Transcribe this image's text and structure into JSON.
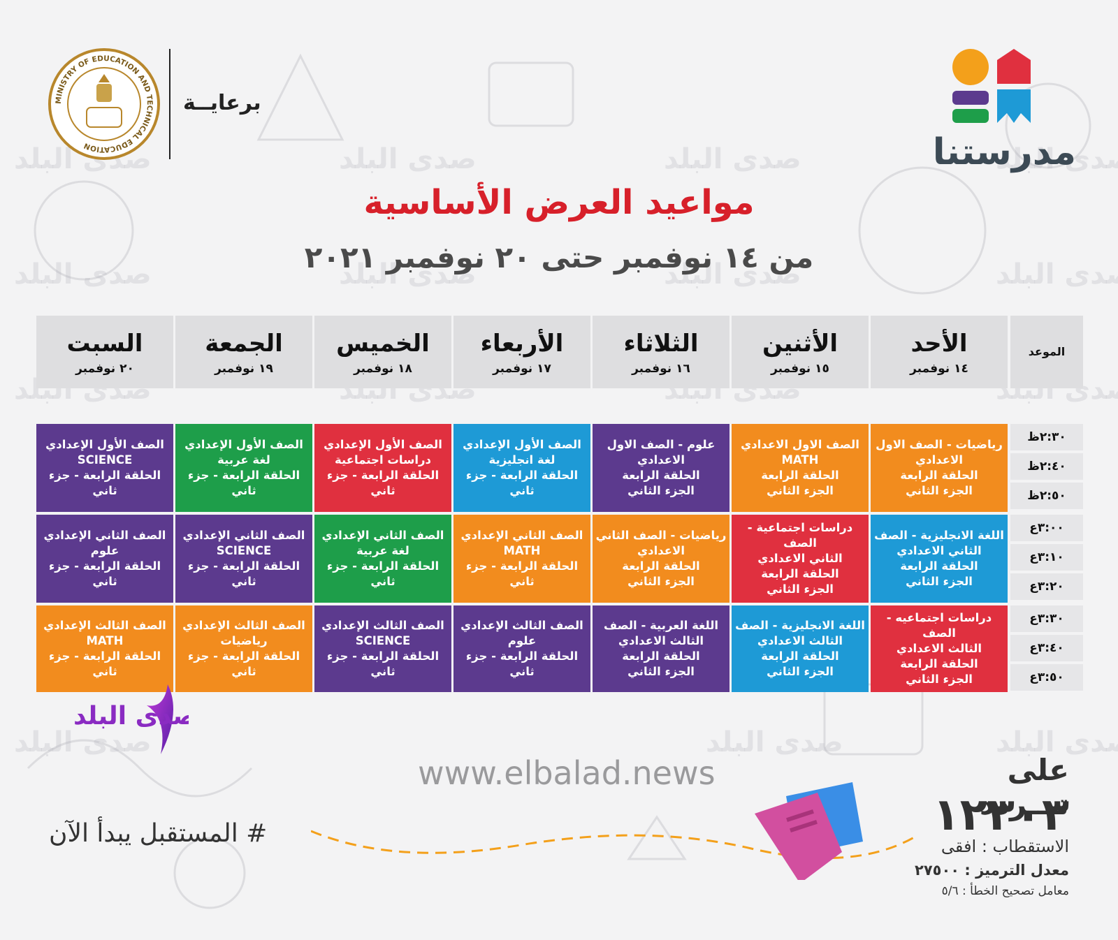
{
  "header": {
    "brand": "مدرستنا",
    "sponsor": "برعايــة",
    "ministry_seal_text": "MINISTRY OF EDUCATION AND TECHNICAL EDUCATION",
    "title": "مواعيد العرض الأساسية",
    "subtitle": "من ١٤ نوفمبر حتى ٢٠ نوفمبر ٢٠٢١"
  },
  "watermark": "صدى البلد",
  "table": {
    "time_header": "الموعد",
    "days": [
      {
        "name": "الأحد",
        "date": "١٤ نوفمبر"
      },
      {
        "name": "الأثنين",
        "date": "١٥ نوفمبر"
      },
      {
        "name": "الثلاثاء",
        "date": "١٦ نوفمبر"
      },
      {
        "name": "الأربعاء",
        "date": "١٧ نوفمبر"
      },
      {
        "name": "الخميس",
        "date": "١٨ نوفمبر"
      },
      {
        "name": "الجمعة",
        "date": "١٩ نوفمبر"
      },
      {
        "name": "السبت",
        "date": "٢٠ نوفمبر"
      }
    ],
    "times": [
      "٢:٣٠ظ",
      "٢:٤٠ظ",
      "٢:٥٠ظ",
      "٣:٠٠ع",
      "٣:١٠ع",
      "٣:٢٠ع",
      "٣:٣٠ع",
      "٣:٤٠ع",
      "٣:٥٠ع"
    ],
    "colors": {
      "purple": "#5c3a8e",
      "green": "#1e9e4a",
      "red": "#e0303f",
      "blue": "#1e9ad6",
      "orange": "#f28c1e"
    },
    "blocks": [
      [
        {
          "color": "orange",
          "lines": [
            "رياضيات - الصف الاول",
            "الاعدادي",
            "الحلقة الرابعة",
            "الجزء الثاني"
          ]
        },
        {
          "color": "orange",
          "lines": [
            "الصف الاول الاعدادي",
            "MATH",
            "الحلقة الرابعة",
            "الجزء الثاني"
          ]
        },
        {
          "color": "purple",
          "lines": [
            "علوم - الصف الاول",
            "الاعدادي",
            "الحلقة الرابعة",
            "الجزء الثاني"
          ]
        },
        {
          "color": "blue",
          "lines": [
            "الصف الأول الإعدادي",
            "لغة انجليزية",
            "الحلقة الرابعة - جزء ثاني"
          ]
        },
        {
          "color": "red",
          "lines": [
            "الصف الأول الإعدادي",
            "دراسات اجتماعية",
            "الحلقة الرابعة - جزء ثاني"
          ]
        },
        {
          "color": "green",
          "lines": [
            "الصف الأول الإعدادي",
            "لغة عربية",
            "الحلقة الرابعة - جزء ثاني"
          ]
        },
        {
          "color": "purple",
          "lines": [
            "الصف الأول الإعدادي",
            "SCIENCE",
            "الحلقة الرابعة - جزء ثاني"
          ]
        }
      ],
      [
        {
          "color": "blue",
          "lines": [
            "اللغة الانجليزية - الصف",
            "الثاني الاعدادي",
            "الحلقة الرابعة",
            "الجزء الثاني"
          ]
        },
        {
          "color": "red",
          "lines": [
            "دراسات اجتماعية - الصف",
            "الثاني الاعدادي",
            "الحلقة الرابعة",
            "الجزء الثاني"
          ]
        },
        {
          "color": "orange",
          "lines": [
            "رياضيات - الصف الثاني",
            "الاعدادي",
            "الحلقة الرابعة",
            "الجزء الثاني"
          ]
        },
        {
          "color": "orange",
          "lines": [
            "الصف الثاني الإعدادي",
            "MATH",
            "الحلقة الرابعة - جزء ثاني"
          ]
        },
        {
          "color": "green",
          "lines": [
            "الصف الثاني الإعدادي",
            "لغة عربية",
            "الحلقة الرابعة - جزء ثاني"
          ]
        },
        {
          "color": "purple",
          "lines": [
            "الصف الثاني الإعدادي",
            "SCIENCE",
            "الحلقة الرابعة - جزء ثاني"
          ]
        },
        {
          "color": "purple",
          "lines": [
            "الصف الثاني الإعدادي",
            "علوم",
            "الحلقة الرابعة - جزء ثاني"
          ]
        }
      ],
      [
        {
          "color": "red",
          "lines": [
            "دراسات اجتماعيه - الصف",
            "الثالث الاعدادي",
            "الحلقة الرابعة",
            "الجزء الثاني"
          ]
        },
        {
          "color": "blue",
          "lines": [
            "اللغة الانجليزية - الصف",
            "الثالث الاعدادي",
            "الحلقة الرابعة",
            "الجزء الثاني"
          ]
        },
        {
          "color": "purple",
          "lines": [
            "اللغة العربية - الصف",
            "الثالث الاعدادي",
            "الحلقة الرابعة",
            "الجزء الثاني"
          ]
        },
        {
          "color": "purple",
          "lines": [
            "الصف الثالث الإعدادي",
            "علوم",
            "الحلقة الرابعة - جزء ثاني"
          ]
        },
        {
          "color": "purple",
          "lines": [
            "الصف الثالث الإعدادي",
            "SCIENCE",
            "الحلقة الرابعة - جزء ثاني"
          ]
        },
        {
          "color": "orange",
          "lines": [
            "الصف الثالث الإعدادي",
            "رياضيات",
            "الحلقة الرابعة - جزء ثاني"
          ]
        },
        {
          "color": "orange",
          "lines": [
            "الصف الثالث الإعدادي",
            "MATH",
            "الحلقة الرابعة - جزء ثاني"
          ]
        }
      ]
    ]
  },
  "footer": {
    "channel_logo": "صدى البلد",
    "website": "www.elbalad.news",
    "hashtag": "# المستقبل يبدأ الآن",
    "frequency_label": "على تـــردد",
    "frequency": "١٢٣٠٣",
    "polarization": "الاستقطاب : افقى",
    "symbol_rate": "معدل الترميز : ٢٧٥٠٠",
    "fec": "معامل تصحيح الخطأ : ٥/٦"
  }
}
